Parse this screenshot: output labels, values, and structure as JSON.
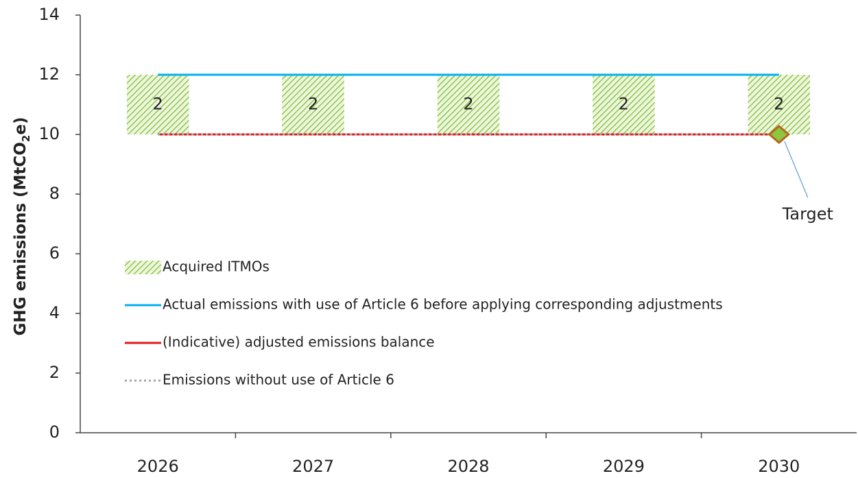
{
  "chart_data": {
    "type": "bar_line",
    "ylabel": [
      "GHG emissions (MtCO",
      "2",
      "e)"
    ],
    "categories": [
      "2026",
      "2027",
      "2028",
      "2029",
      "2030"
    ],
    "series": [
      {
        "name": "Acquired ITMOs",
        "kind": "bar",
        "color": "#8dc63f",
        "stack_on": 2,
        "values": [
          2,
          2,
          2,
          2,
          2
        ]
      },
      {
        "name": "Actual emissions with use of Article 6 before applying corresponding adjustments",
        "kind": "line",
        "color": "#00b0f0",
        "values": [
          12,
          12,
          12,
          12,
          12
        ]
      },
      {
        "name": "(Indicative) adjusted emissions balance",
        "kind": "line",
        "color": "#e8141a",
        "values": [
          10,
          10,
          10,
          10,
          10
        ]
      },
      {
        "name": "Emissions without use of Article 6",
        "kind": "dotted",
        "color": "#a6a6a6",
        "values": [
          10,
          10,
          10,
          10,
          10
        ]
      }
    ],
    "target": {
      "x": "2030",
      "value": 10,
      "label": "Target",
      "color": "#8dc63f",
      "edge": "#b5651d"
    },
    "ylim": [
      0,
      14
    ],
    "yticks": [
      0,
      2,
      4,
      6,
      8,
      10,
      12,
      14
    ]
  }
}
